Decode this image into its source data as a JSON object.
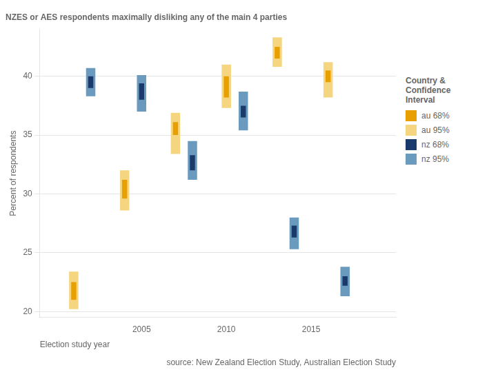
{
  "chart_data": {
    "type": "bar",
    "title": "NZES or AES respondents maximally disliking any of the main 4 parties",
    "xlabel": "Election study year",
    "ylabel": "Percent of respondents",
    "source": "source: New Zealand Election Study, Australian Election Study",
    "legend_title": "Country &\nConfidence\nInterval",
    "legend": "right",
    "grid": "y",
    "xlim": [
      1999,
      2020
    ],
    "xticks": [
      2005,
      2010,
      2015
    ],
    "ylim": [
      19.5,
      44
    ],
    "yticks": [
      20,
      25,
      30,
      35,
      40
    ],
    "series": [
      {
        "name": "au 68%",
        "color": "#E8A000",
        "x": [
          2001,
          2004,
          2007,
          2010,
          2013,
          2016
        ],
        "values": [
          [
            21.0,
            22.5
          ],
          [
            29.6,
            31.2
          ],
          [
            35.0,
            36.1
          ],
          [
            38.2,
            40.0
          ],
          [
            41.5,
            42.5
          ],
          [
            39.5,
            40.5
          ]
        ]
      },
      {
        "name": "au 95%",
        "color": "#F5D580",
        "x": [
          2001,
          2004,
          2007,
          2010,
          2013,
          2016
        ],
        "values": [
          [
            20.2,
            23.4
          ],
          [
            28.6,
            32.0
          ],
          [
            33.4,
            36.9
          ],
          [
            37.3,
            41.0
          ],
          [
            40.8,
            43.3
          ],
          [
            38.2,
            41.2
          ]
        ]
      },
      {
        "name": "nz 68%",
        "color": "#1A3A6B",
        "x": [
          2002,
          2005,
          2008,
          2011,
          2014,
          2017
        ],
        "values": [
          [
            39.0,
            40.0
          ],
          [
            38.0,
            39.4
          ],
          [
            32.0,
            33.3
          ],
          [
            36.5,
            37.5
          ],
          [
            26.3,
            27.3
          ],
          [
            22.2,
            23.0
          ]
        ]
      },
      {
        "name": "nz 95%",
        "color": "#6B9ABF",
        "x": [
          2002,
          2005,
          2008,
          2011,
          2014,
          2017
        ],
        "values": [
          [
            38.3,
            40.7
          ],
          [
            37.0,
            40.1
          ],
          [
            31.2,
            34.5
          ],
          [
            35.4,
            38.7
          ],
          [
            25.3,
            28.0
          ],
          [
            21.3,
            23.8
          ]
        ]
      }
    ]
  }
}
